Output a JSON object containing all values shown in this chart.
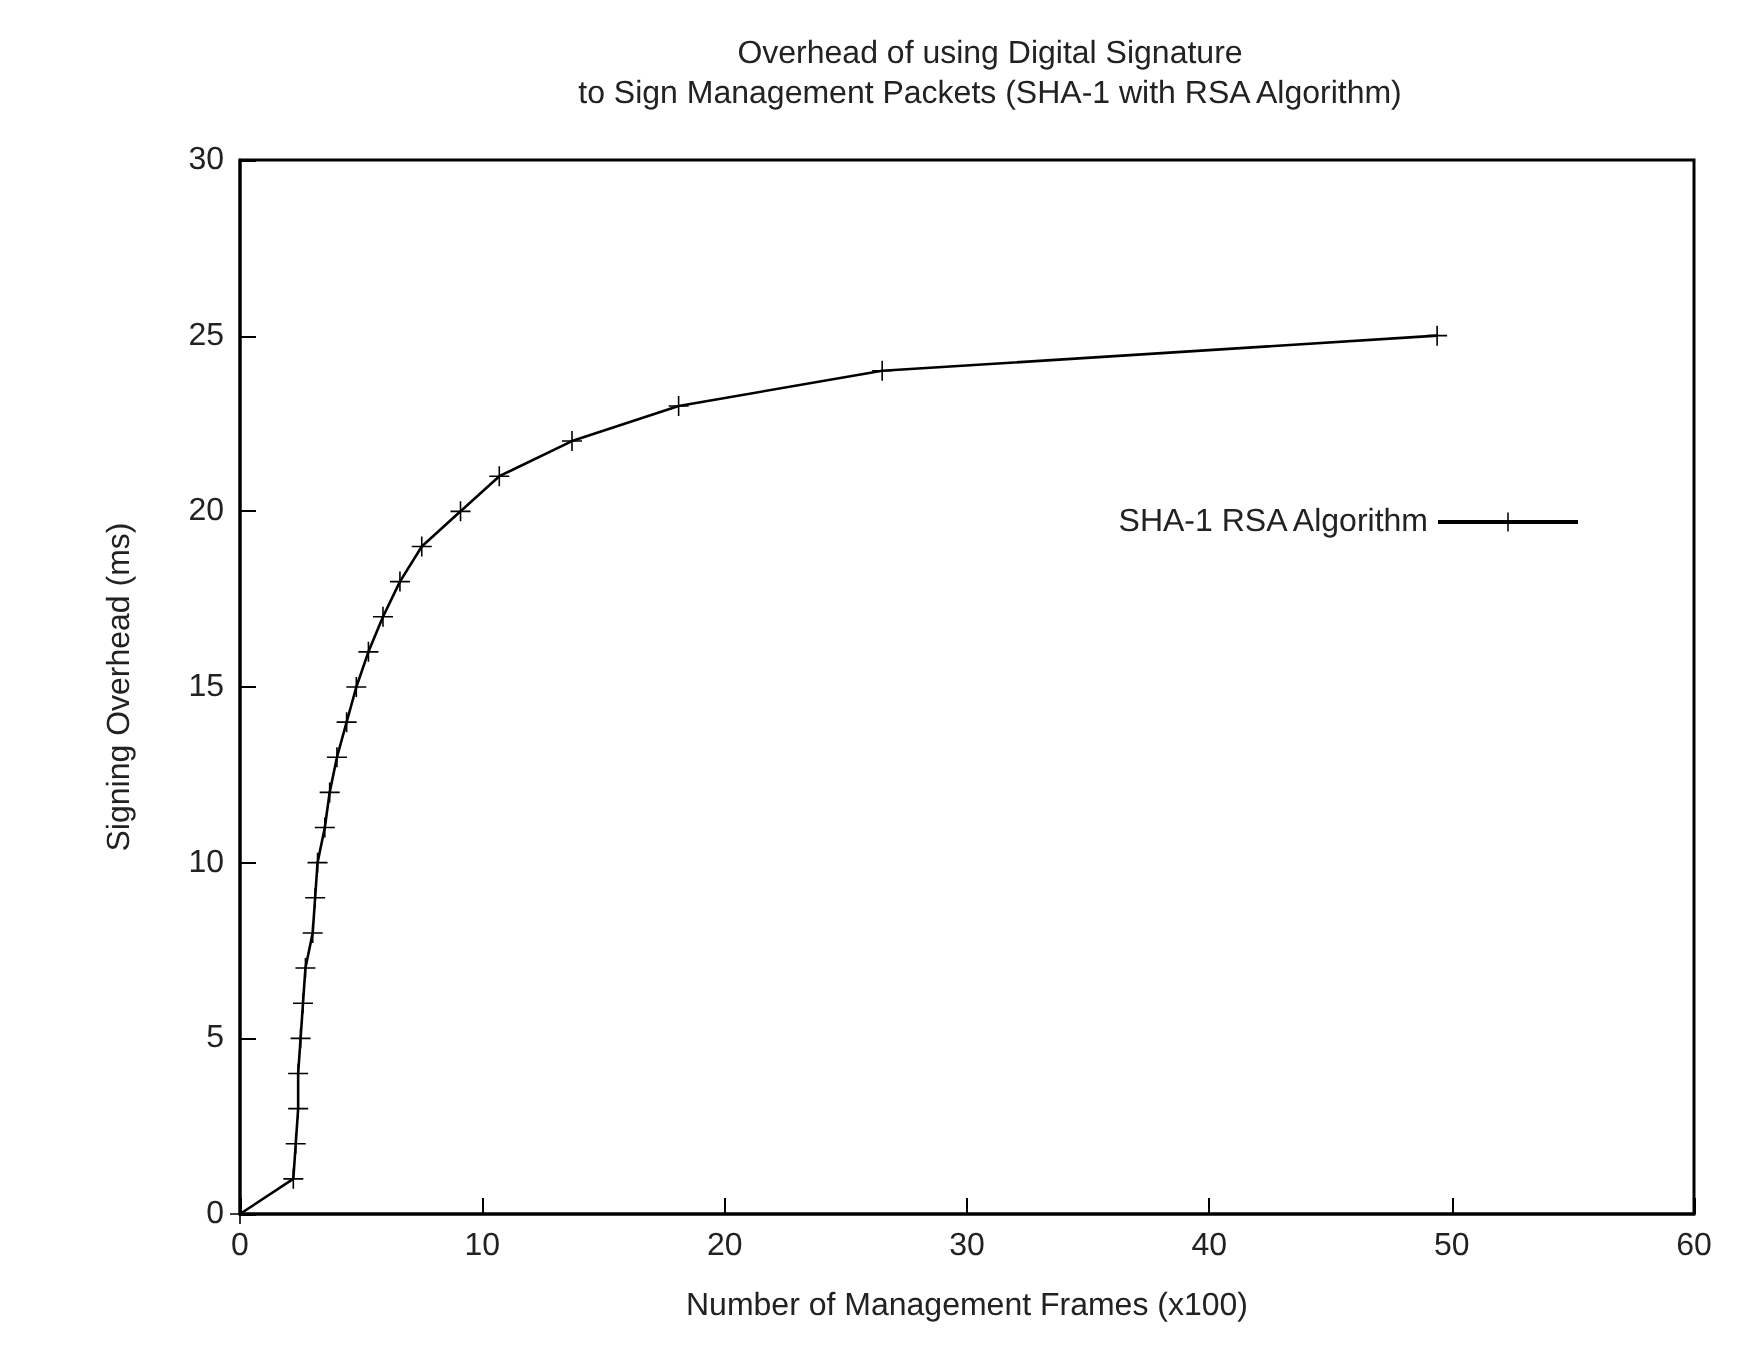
{
  "chart_data": {
    "type": "line",
    "title": "Overhead of using Digital Signature\nto Sign Management Packets (SHA-1 with RSA Algorithm)",
    "xlabel": "Number of Management Frames (x100)",
    "ylabel": "Signing Overhead (ms)",
    "x": [
      0,
      2.2,
      2.3,
      2.4,
      2.4,
      2.5,
      2.6,
      2.7,
      3.0,
      3.1,
      3.2,
      3.5,
      3.7,
      4.0,
      4.4,
      4.8,
      5.3,
      5.9,
      6.6,
      7.5,
      9.1,
      10.7,
      13.7,
      18.1,
      26.5,
      49.4
    ],
    "series": [
      {
        "name": "SHA-1 RSA Algorithm",
        "color": "#000000",
        "values": [
          0,
          1,
          2,
          3,
          4,
          5,
          6,
          7,
          8,
          9,
          10,
          11,
          12,
          13,
          14,
          15,
          16,
          17,
          18,
          19,
          20,
          21,
          22,
          23,
          24,
          25
        ]
      }
    ],
    "xlim": [
      0,
      60
    ],
    "xticks": [
      0,
      10,
      20,
      30,
      40,
      50,
      60
    ],
    "ylim": [
      0,
      30
    ],
    "yticks": [
      0,
      5,
      10,
      15,
      20,
      25,
      30
    ],
    "grid": false,
    "legend": "top right",
    "marker": "cross",
    "line_style": "solid"
  }
}
